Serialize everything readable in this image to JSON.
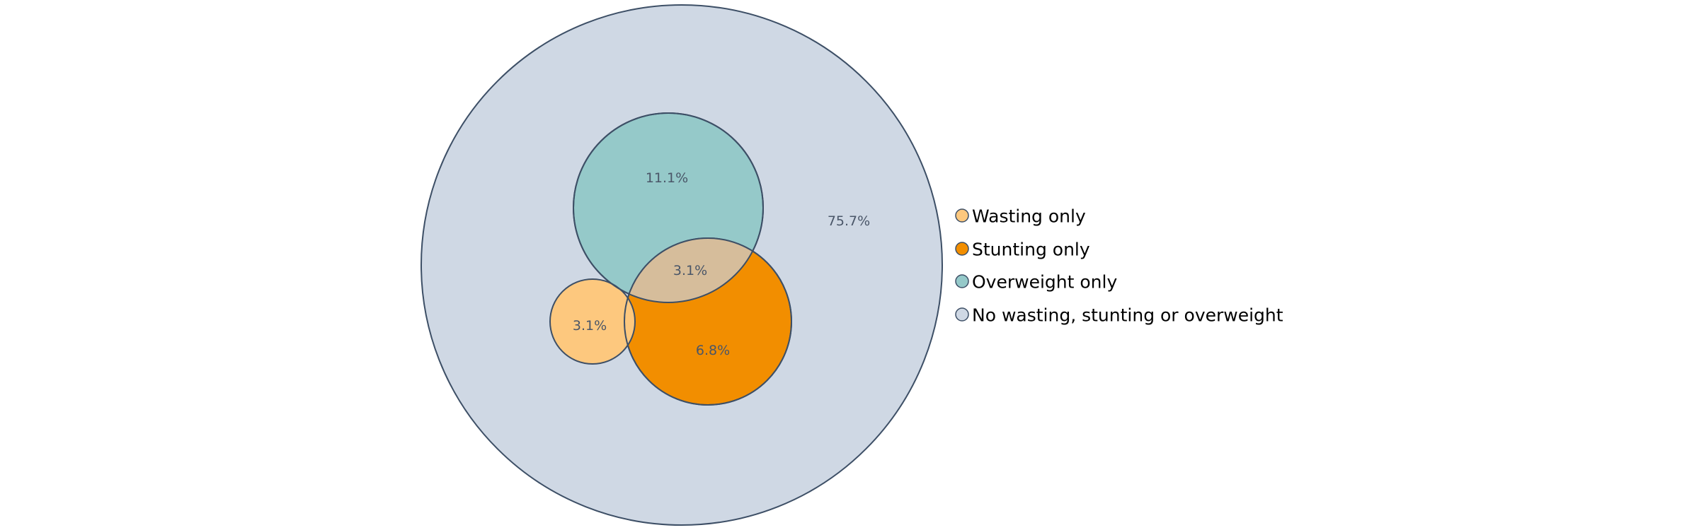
{
  "chart_data": {
    "type": "venn",
    "title": "",
    "sets": [
      {
        "name": "Wasting only",
        "color": "#fdc87e"
      },
      {
        "name": "Stunting only",
        "color": "#f28e00"
      },
      {
        "name": "Overweight only",
        "color": "#95c9c9"
      },
      {
        "name": "No wasting, stunting or overweight",
        "color": "#cfd8e4"
      }
    ],
    "regions": [
      {
        "sets": [
          "No wasting, stunting or overweight"
        ],
        "label": "75.7%",
        "value": 75.7
      },
      {
        "sets": [
          "Overweight only"
        ],
        "label": "11.1%",
        "value": 11.1
      },
      {
        "sets": [
          "Overweight only",
          "Stunting only"
        ],
        "label": "3.1%",
        "value": 3.1
      },
      {
        "sets": [
          "Wasting only"
        ],
        "label": "3.1%",
        "value": 3.1
      },
      {
        "sets": [
          "Stunting only"
        ],
        "label": "6.8%",
        "value": 6.8
      }
    ],
    "overlap_color": "#d6bd9b",
    "outline_color": "#3d4f66",
    "label_color": "#4a5668",
    "legend": {
      "position": "right",
      "items": [
        "Wasting only",
        "Stunting only",
        "Overweight only",
        "No wasting, stunting or overweight"
      ]
    }
  }
}
